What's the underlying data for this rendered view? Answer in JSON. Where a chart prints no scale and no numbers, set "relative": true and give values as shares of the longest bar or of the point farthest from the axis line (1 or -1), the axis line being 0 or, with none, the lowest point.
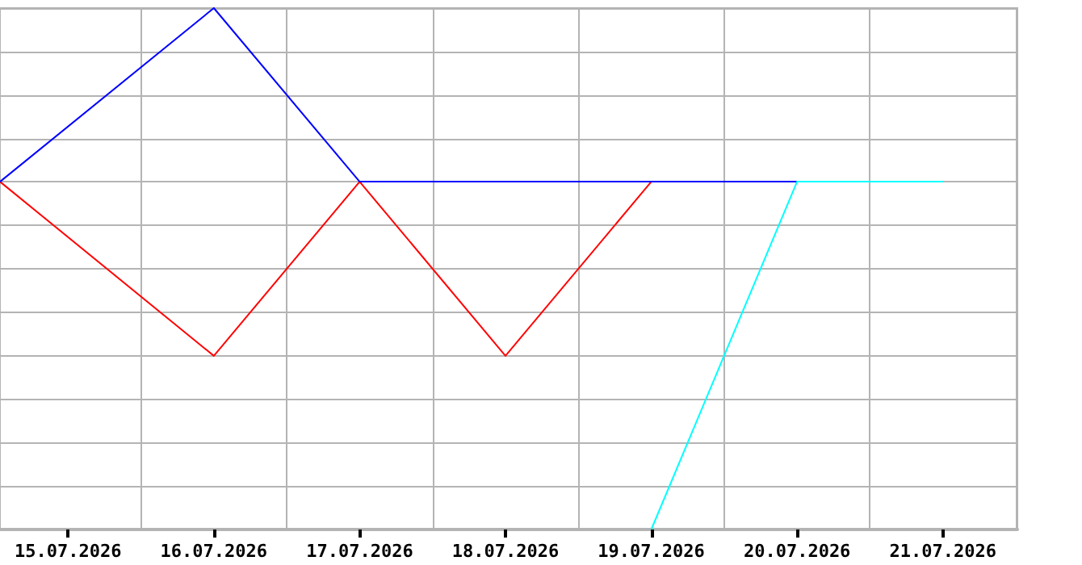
{
  "chart_data": {
    "type": "line",
    "relative": true,
    "grid": true,
    "marker": "none",
    "line_style": "solid",
    "xlim": [
      "2026-07-14T12:48",
      "2026-07-21T12:16"
    ],
    "xticks": [
      {
        "value": "2026-07-15",
        "label": "15.07.2026"
      },
      {
        "value": "2026-07-16",
        "label": "16.07.2026"
      },
      {
        "value": "2026-07-17",
        "label": "17.07.2026"
      },
      {
        "value": "2026-07-18",
        "label": "18.07.2026"
      },
      {
        "value": "2026-07-19",
        "label": "19.07.2026"
      },
      {
        "value": "2026-07-20",
        "label": "20.07.2026"
      },
      {
        "value": "2026-07-21",
        "label": "21.07.2026"
      }
    ],
    "series": [
      {
        "color": "#ff0000",
        "x": [
          "2026-07-14T12:48",
          "2026-07-16",
          "2026-07-17",
          "2026-07-18",
          "2026-07-19"
        ],
        "values": [
          0.667,
          0.333,
          0.667,
          0.333,
          0.667
        ]
      },
      {
        "color": "#0000ff",
        "x": [
          "2026-07-14T12:48",
          "2026-07-16",
          "2026-07-17",
          "2026-07-18",
          "2026-07-19",
          "2026-07-20"
        ],
        "values": [
          0.667,
          1,
          0.667,
          0.667,
          0.667,
          0.667
        ]
      },
      {
        "color": "#00ffff",
        "x": [
          "2026-07-19",
          "2026-07-20",
          "2026-07-21"
        ],
        "values": [
          0,
          0.667,
          0.667
        ]
      }
    ]
  }
}
